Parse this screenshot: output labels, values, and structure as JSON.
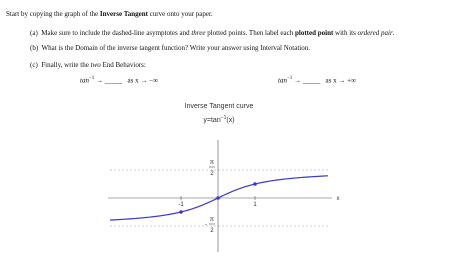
{
  "intro": [
    "Start by copying the graph of the ",
    "Inverse Tangent",
    " curve onto your paper."
  ],
  "items": [
    {
      "label": "(a)",
      "text": [
        "Make sure to include the dashed-line asymptotes and ",
        "three",
        " plotted points. Then label each ",
        "plotted point",
        " with its ",
        "ordered pair",
        "."
      ]
    },
    {
      "label": "(b)",
      "text": [
        "What is the Domain of the inverse tangent function? Write your answer using Interval Notation."
      ]
    },
    {
      "label": "(c)",
      "text": [
        "Finally, write the ",
        "two",
        " End Behaviors:"
      ]
    }
  ],
  "end_behaviors": [
    {
      "func": "tan",
      "exp": "−1",
      "arrow": "→",
      "blank": "_____",
      "condition": "as x → −∞"
    },
    {
      "func": "tan",
      "exp": "−1",
      "arrow": "→",
      "blank": "_____",
      "condition": "as x → +∞"
    }
  ],
  "figure": {
    "title": "Inverse Tangent curve",
    "equation": {
      "base": "y=tan",
      "exp": "−1",
      "arg": "(x)"
    },
    "x_axis_label": "x",
    "x_labels": [
      "-1",
      "1"
    ],
    "y_labels": [
      {
        "num": "π",
        "den": "2"
      },
      {
        "sign": "-",
        "num": "π",
        "den": "2"
      }
    ]
  }
}
